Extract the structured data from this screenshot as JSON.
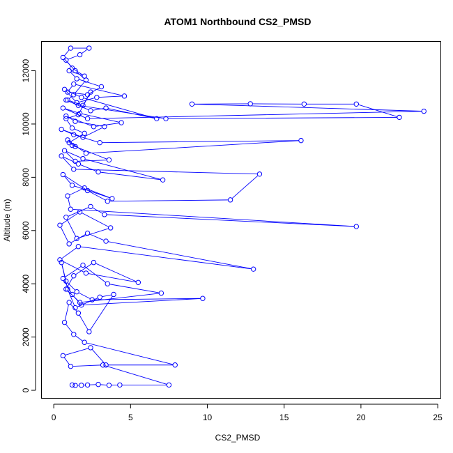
{
  "chart_data": {
    "type": "scatter",
    "title": "ATOM1 Northbound CS2_PMSD",
    "xlabel": "CS2_PMSD",
    "ylabel": "Altitude (m)",
    "xlim": [
      -0.8,
      25.2
    ],
    "ylim": [
      -300,
      13100
    ],
    "xticks": [
      0,
      5,
      10,
      15,
      20,
      25
    ],
    "yticks": [
      0,
      2000,
      4000,
      6000,
      8000,
      10000,
      12000
    ],
    "grid": false,
    "color": "#0000ff",
    "series": [
      {
        "style": "points-connected",
        "x": [
          1.2,
          1.4,
          1.8,
          2.2,
          2.9,
          3.6,
          4.3,
          7.5,
          3.2,
          1.1,
          0.6,
          2.4,
          3.4,
          7.9,
          2.0,
          1.3,
          0.7,
          1.0,
          1.6,
          2.3,
          3.9,
          3.0,
          1.4,
          0.9,
          0.5,
          0.8,
          1.5,
          2.5,
          9.7,
          1.8,
          1.2,
          0.6,
          1.9,
          3.5,
          7.0,
          1.7,
          0.8,
          1.3,
          2.6,
          5.5,
          2.1,
          0.4,
          1.6,
          13.0,
          3.4,
          2.2,
          1.0,
          0.4,
          1.7,
          3.7,
          1.5,
          0.8,
          2.4,
          3.3,
          19.7,
          1.1,
          0.9,
          2.0,
          3.8,
          1.2,
          0.6,
          2.2,
          3.5,
          11.5,
          13.4,
          1.3,
          0.5,
          1.6,
          2.9,
          7.1,
          1.9,
          0.7,
          1.4,
          3.6,
          1.2,
          0.9,
          2.1,
          16.1,
          3.0,
          1.3,
          0.5,
          1.9,
          3.3,
          1.4,
          0.8,
          2.6,
          4.4,
          1.7,
          0.6,
          2.2,
          24.1,
          9.0,
          12.8,
          16.3,
          19.7,
          22.5,
          7.3,
          1.6,
          0.8,
          2.4,
          3.4,
          6.7,
          1.8,
          0.7,
          1.5,
          2.8,
          4.6,
          1.3,
          0.9,
          2.2,
          3.1,
          1.5,
          1.0,
          2.0,
          1.2,
          0.8,
          1.7,
          2.3,
          1.1,
          0.6,
          1.4,
          2.1,
          1.3,
          0.9,
          1.9,
          2.4,
          1.6,
          0.8,
          1.2,
          2.0,
          1.0,
          1.4
        ],
        "y": [
          200,
          180,
          190,
          200,
          220,
          190,
          200,
          200,
          950,
          900,
          1300,
          1600,
          950,
          950,
          1800,
          2100,
          2550,
          3300,
          2900,
          2200,
          3600,
          3500,
          3100,
          3800,
          4800,
          4100,
          3700,
          3400,
          3450,
          3200,
          3600,
          4200,
          4700,
          4000,
          3650,
          3300,
          3800,
          4300,
          4800,
          4050,
          4400,
          4900,
          5400,
          4550,
          5600,
          5900,
          5500,
          6200,
          6700,
          6100,
          5700,
          6500,
          6900,
          6600,
          6150,
          6800,
          7300,
          7600,
          7200,
          7700,
          8100,
          7500,
          7100,
          7150,
          8120,
          8300,
          8800,
          8500,
          8200,
          7900,
          8700,
          9000,
          8600,
          8650,
          9200,
          9400,
          8900,
          9380,
          9300,
          9600,
          9800,
          9500,
          9900,
          10100,
          10300,
          9900,
          10050,
          10400,
          10600,
          10200,
          10480,
          10750,
          10760,
          10750,
          10750,
          10250,
          10200,
          10700,
          10900,
          10500,
          10600,
          10200,
          11000,
          11300,
          10800,
          11000,
          11050,
          11500,
          11200,
          11100,
          11400,
          11700,
          12000,
          11800,
          12100,
          12400,
          12600,
          12850,
          12850,
          12500,
          12000,
          11650,
          11100,
          10900,
          10700,
          11200,
          10350,
          10200,
          9850,
          9650,
          9300,
          9150
        ]
      }
    ]
  }
}
